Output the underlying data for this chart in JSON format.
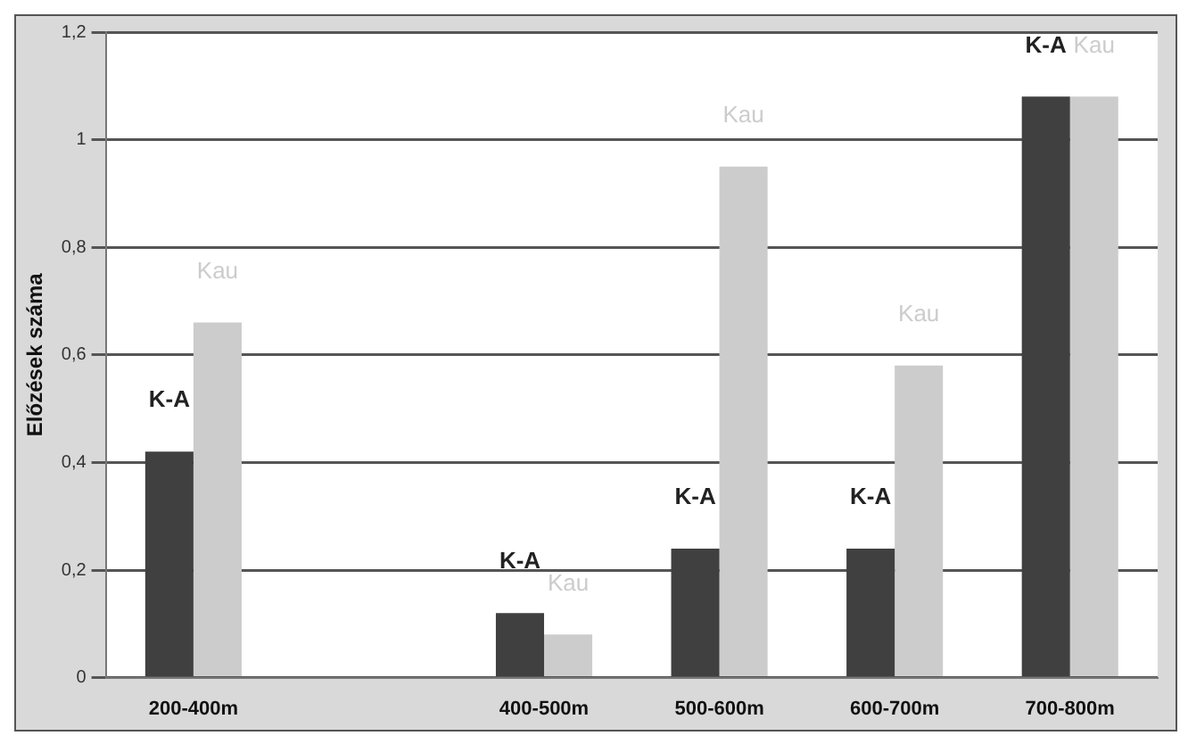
{
  "chart_data": {
    "type": "bar",
    "ylabel": "Előzések száma",
    "categories": [
      "200-400m",
      null,
      "400-500m",
      "500-600m",
      "600-700m",
      "700-800m"
    ],
    "series": [
      {
        "name": "K-A",
        "color": "#404040",
        "values": [
          0.42,
          null,
          0.12,
          0.24,
          0.24,
          1.08
        ]
      },
      {
        "name": "Kau",
        "color": "#cccccc",
        "values": [
          0.66,
          null,
          0.08,
          0.95,
          0.58,
          1.08
        ]
      }
    ],
    "ylim": [
      0,
      1.2
    ],
    "yticks": [
      0,
      {
        "value": 0.2,
        "label": "0,2"
      },
      {
        "value": 0.4,
        "label": "0,4"
      },
      {
        "value": 0.6,
        "label": "0,6"
      },
      {
        "value": 0.8,
        "label": "0,8"
      },
      1,
      {
        "value": 1.2,
        "label": "1,2"
      }
    ],
    "grid": "y",
    "legend": false
  }
}
